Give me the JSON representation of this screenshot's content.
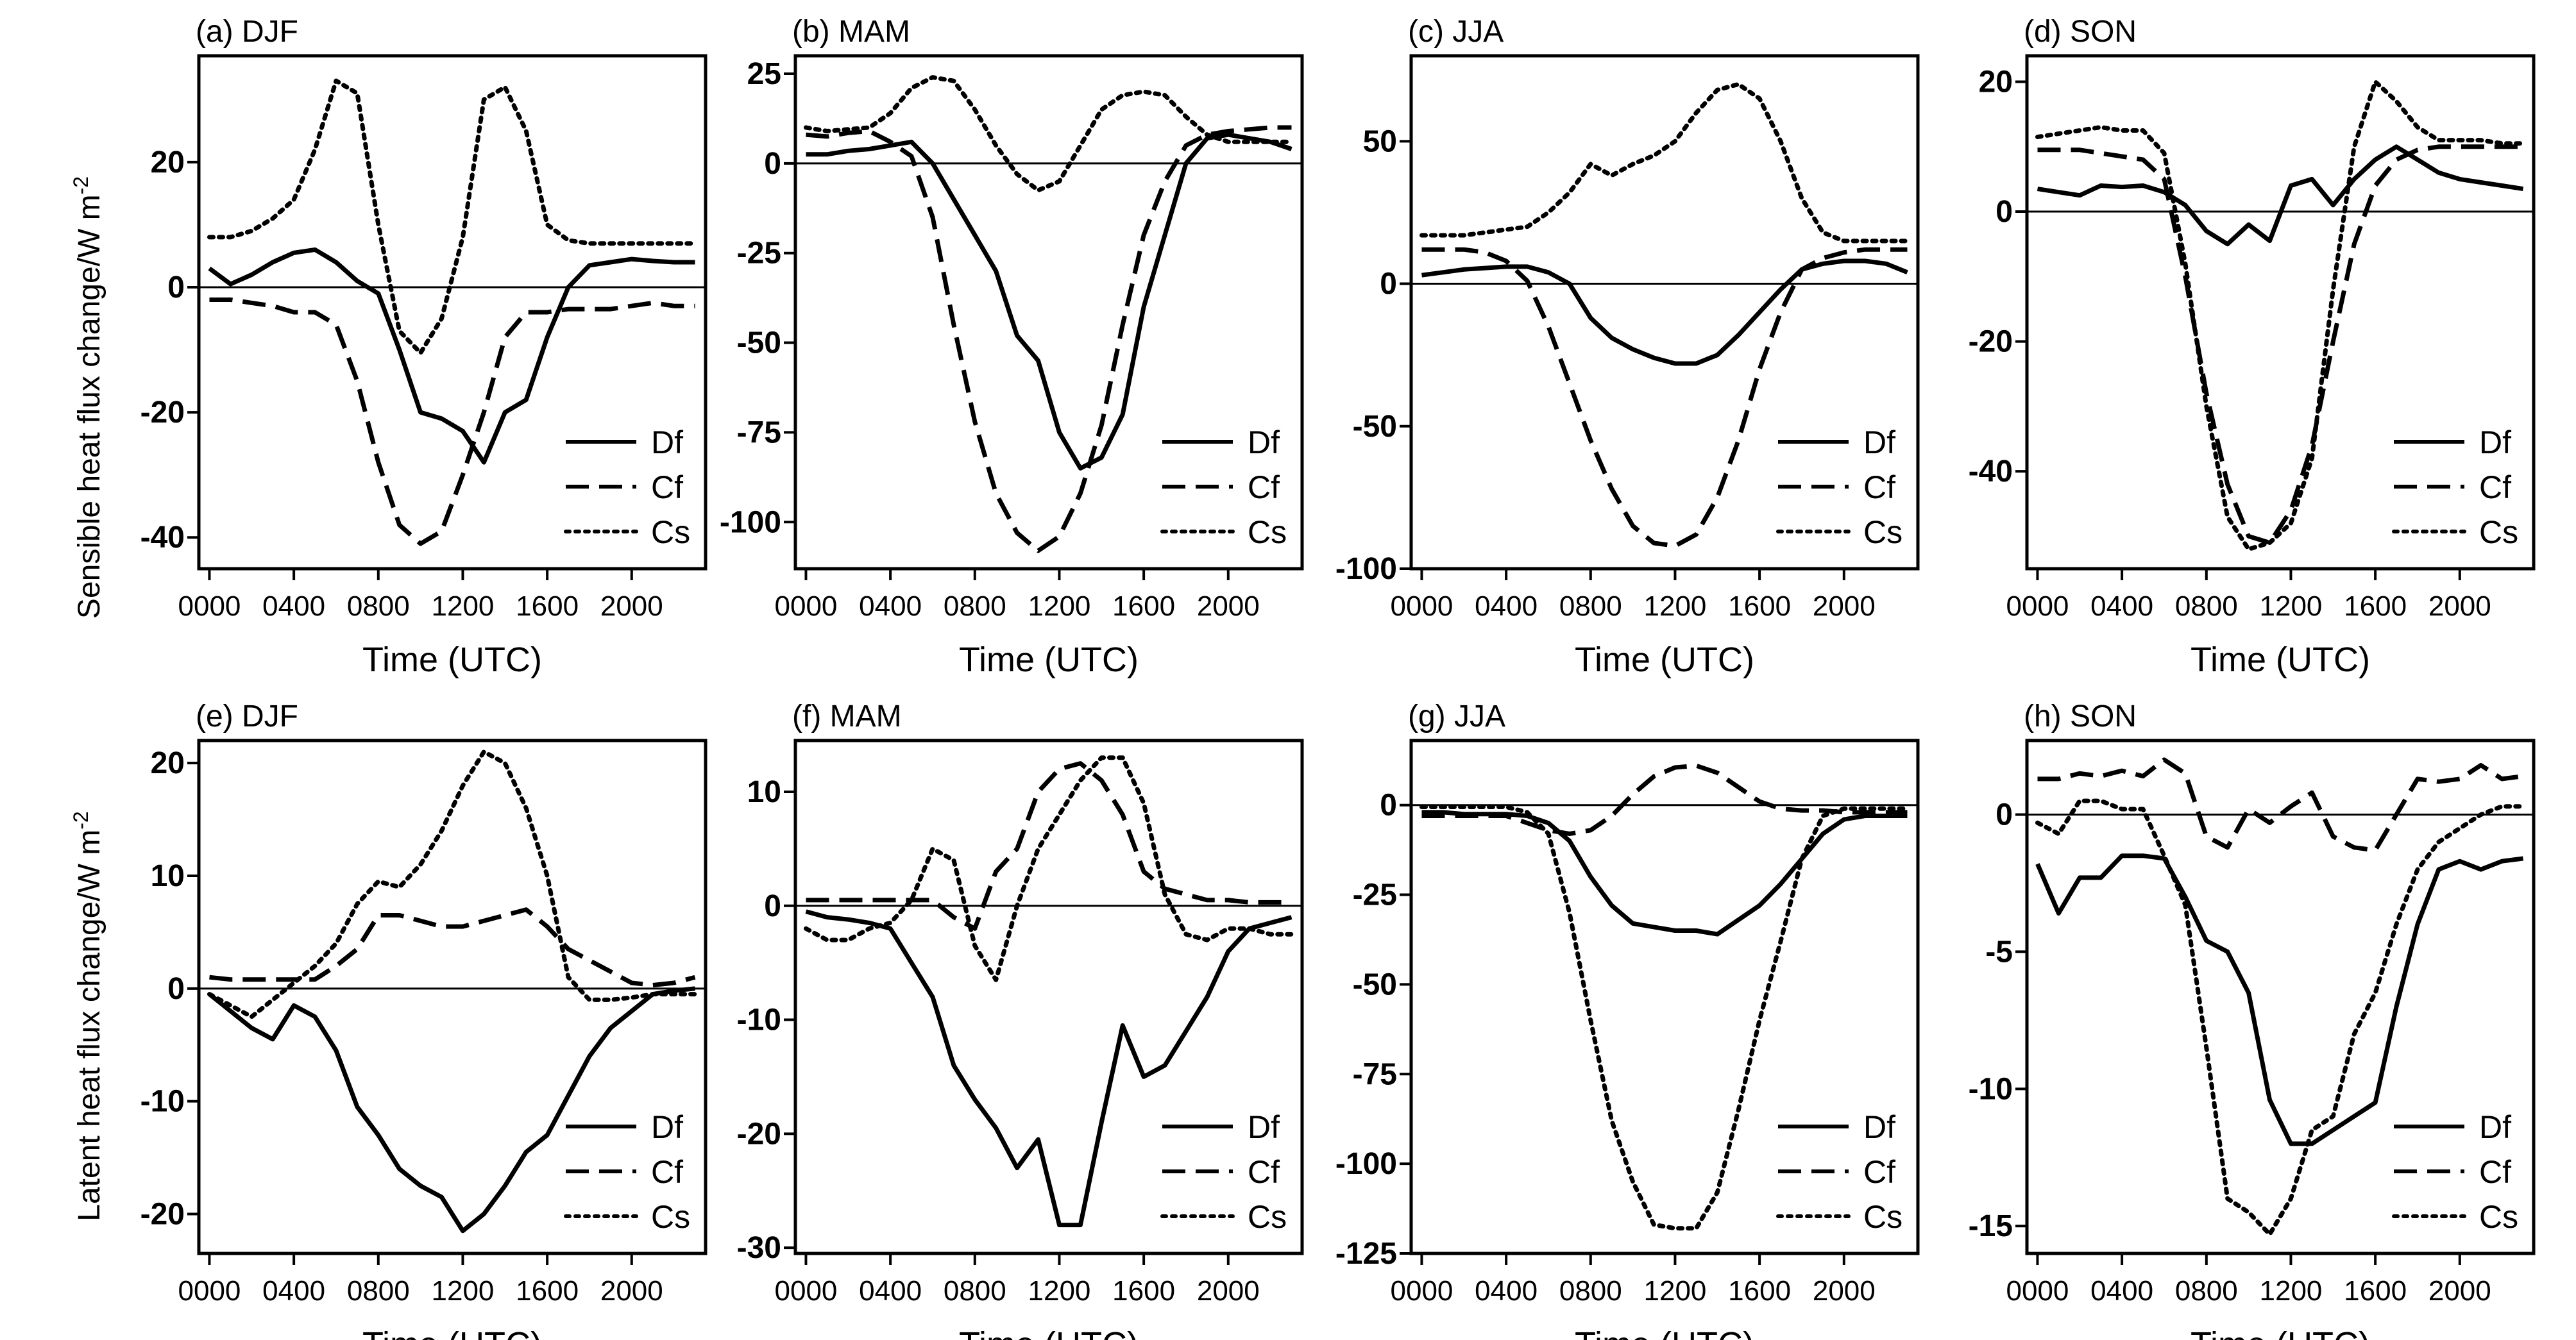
{
  "figure": {
    "x_axis_label": "Time (UTC)",
    "y_label_top_main": "Sensible heat flux change/W m",
    "y_label_top_sup": "-2",
    "y_label_bottom_main": "Latent heat flux change/W m",
    "y_label_bottom_sup": "-2",
    "legend": [
      "Df",
      "Cf",
      "Cs"
    ]
  },
  "chart_data": [
    {
      "type": "line",
      "title": "(a)  DJF",
      "xlabel": "Time (UTC)",
      "ylabel": "Sensible heat flux change/W m-2",
      "x_ticks": [
        "0000",
        "0400",
        "0800",
        "1200",
        "1600",
        "2000"
      ],
      "xlim": [
        -0.5,
        23.5
      ],
      "ylim": [
        -45,
        37
      ],
      "y_ticks": [
        20,
        0,
        -20,
        -40
      ],
      "x": [
        0,
        1,
        2,
        3,
        4,
        5,
        6,
        7,
        8,
        9,
        10,
        11,
        12,
        13,
        14,
        15,
        16,
        17,
        18,
        19,
        20,
        21,
        22,
        23
      ],
      "series": [
        {
          "name": "Df",
          "style": "solid",
          "values": [
            3,
            0.5,
            2,
            4,
            5.5,
            6,
            4,
            1,
            -1,
            -10,
            -20,
            -21,
            -23,
            -28,
            -20,
            -18,
            -8,
            0,
            3.5,
            4,
            4.5,
            4.2,
            4,
            4
          ]
        },
        {
          "name": "Cf",
          "style": "dashed",
          "values": [
            -2,
            -2,
            -2.5,
            -3,
            -4,
            -4,
            -6,
            -15,
            -28,
            -38,
            -41,
            -39,
            -30,
            -20,
            -8,
            -4,
            -4,
            -3.5,
            -3.5,
            -3.5,
            -3,
            -2.5,
            -3,
            -3
          ]
        },
        {
          "name": "Cs",
          "style": "dotted",
          "values": [
            8,
            8,
            9,
            11,
            14,
            22,
            33,
            31,
            10,
            -7,
            -10.5,
            -5,
            8,
            30,
            32,
            25,
            10,
            7.5,
            7,
            7,
            7,
            7,
            7,
            7
          ]
        }
      ]
    },
    {
      "type": "line",
      "title": "(b)  MAM",
      "xlabel": "Time (UTC)",
      "ylabel": "",
      "x_ticks": [
        "0000",
        "0400",
        "0800",
        "1200",
        "1600",
        "2000"
      ],
      "xlim": [
        -0.5,
        23.5
      ],
      "ylim": [
        -113,
        30
      ],
      "y_ticks": [
        25,
        0,
        -25,
        -50,
        -75,
        -100
      ],
      "x": [
        0,
        1,
        2,
        3,
        4,
        5,
        6,
        7,
        8,
        9,
        10,
        11,
        12,
        13,
        14,
        15,
        16,
        17,
        18,
        19,
        20,
        21,
        22,
        23
      ],
      "series": [
        {
          "name": "Df",
          "style": "solid",
          "values": [
            2.5,
            2.5,
            3.5,
            4,
            5,
            6,
            0,
            -10,
            -20,
            -30,
            -48,
            -55,
            -75,
            -85,
            -82,
            -70,
            -40,
            -20,
            0,
            7,
            8,
            7,
            6,
            4
          ]
        },
        {
          "name": "Cf",
          "style": "dashed",
          "values": [
            8,
            7.5,
            8.5,
            9,
            6,
            2,
            -15,
            -45,
            -72,
            -92,
            -103,
            -108,
            -104,
            -92,
            -73,
            -45,
            -20,
            -5,
            5,
            8,
            9,
            9.5,
            10,
            10
          ]
        },
        {
          "name": "Cs",
          "style": "dotted",
          "values": [
            10,
            9,
            9.5,
            10,
            14,
            21,
            24,
            23,
            15,
            5,
            -3,
            -7.5,
            -5,
            5,
            15,
            19,
            20,
            19,
            13,
            8,
            6,
            6,
            6,
            6
          ]
        }
      ]
    },
    {
      "type": "line",
      "title": "(c)  JJA",
      "xlabel": "Time (UTC)",
      "ylabel": "",
      "x_ticks": [
        "0000",
        "0400",
        "0800",
        "1200",
        "1600",
        "2000"
      ],
      "xlim": [
        -0.5,
        23.5
      ],
      "ylim": [
        -100,
        80
      ],
      "y_ticks": [
        50,
        0,
        -50,
        -100
      ],
      "x": [
        0,
        1,
        2,
        3,
        4,
        5,
        6,
        7,
        8,
        9,
        10,
        11,
        12,
        13,
        14,
        15,
        16,
        17,
        18,
        19,
        20,
        21,
        22,
        23
      ],
      "series": [
        {
          "name": "Df",
          "style": "solid",
          "values": [
            3,
            4,
            5,
            5.5,
            6,
            6,
            4,
            0,
            -12,
            -19,
            -23,
            -26,
            -28,
            -28,
            -25,
            -18,
            -10,
            -2,
            5,
            7,
            8,
            8,
            7,
            4
          ]
        },
        {
          "name": "Cf",
          "style": "dashed",
          "values": [
            12,
            12,
            12,
            11,
            8,
            1,
            -15,
            -35,
            -55,
            -72,
            -85,
            -91,
            -92,
            -88,
            -75,
            -55,
            -30,
            -10,
            5,
            9,
            11,
            12,
            12,
            12
          ]
        },
        {
          "name": "Cs",
          "style": "dotted",
          "values": [
            17,
            17,
            17,
            18,
            19,
            20,
            25,
            32,
            42,
            38,
            42,
            45,
            50,
            60,
            68,
            70,
            65,
            50,
            30,
            18,
            15,
            15,
            15,
            15
          ]
        }
      ]
    },
    {
      "type": "line",
      "title": "(d)  SON",
      "xlabel": "Time (UTC)",
      "ylabel": "",
      "x_ticks": [
        "0000",
        "0400",
        "0800",
        "1200",
        "1600",
        "2000"
      ],
      "xlim": [
        -0.5,
        23.5
      ],
      "ylim": [
        -55,
        24
      ],
      "y_ticks": [
        20,
        0,
        -20,
        -40
      ],
      "x": [
        0,
        1,
        2,
        3,
        4,
        5,
        6,
        7,
        8,
        9,
        10,
        11,
        12,
        13,
        14,
        15,
        16,
        17,
        18,
        19,
        20,
        21,
        22,
        23
      ],
      "series": [
        {
          "name": "Df",
          "style": "solid",
          "values": [
            3.5,
            3,
            2.5,
            4,
            3.8,
            4,
            3,
            1,
            -3,
            -5,
            -2,
            -4.5,
            4,
            5,
            1,
            5,
            8,
            10,
            8,
            6,
            5,
            4.5,
            4,
            3.5
          ]
        },
        {
          "name": "Cf",
          "style": "dashed",
          "values": [
            9.5,
            9.5,
            9.5,
            9,
            8.5,
            8,
            5,
            -10,
            -28,
            -42,
            -50,
            -51,
            -46,
            -36,
            -20,
            -5,
            4,
            8,
            9.5,
            10,
            10,
            10,
            10,
            10
          ]
        },
        {
          "name": "Cs",
          "style": "dotted",
          "values": [
            11.5,
            12,
            12.5,
            13,
            12.5,
            12.5,
            9,
            -8,
            -30,
            -47,
            -52,
            -51,
            -48,
            -38,
            -12,
            10,
            20,
            17,
            13,
            11,
            11,
            11,
            10.5,
            10.5
          ]
        }
      ]
    },
    {
      "type": "line",
      "title": "(e)  DJF",
      "xlabel": "Time (UTC)",
      "ylabel": "Latent heat flux change/W m-2",
      "x_ticks": [
        "0000",
        "0400",
        "0800",
        "1200",
        "1600",
        "2000"
      ],
      "xlim": [
        -0.5,
        23.5
      ],
      "ylim": [
        -23.5,
        22
      ],
      "y_ticks": [
        20,
        10,
        0,
        -10,
        -20
      ],
      "x": [
        0,
        1,
        2,
        3,
        4,
        5,
        6,
        7,
        8,
        9,
        10,
        11,
        12,
        13,
        14,
        15,
        16,
        17,
        18,
        19,
        20,
        21,
        22,
        23
      ],
      "series": [
        {
          "name": "Df",
          "style": "solid",
          "values": [
            -0.5,
            -2,
            -3.5,
            -4.5,
            -1.5,
            -2.5,
            -5.5,
            -10.5,
            -13,
            -16,
            -17.5,
            -18.5,
            -21.5,
            -20,
            -17.5,
            -14.5,
            -13,
            -9.5,
            -6,
            -3.5,
            -2,
            -0.5,
            -0.2,
            0
          ]
        },
        {
          "name": "Cf",
          "style": "dashed",
          "values": [
            1,
            0.8,
            0.8,
            0.8,
            0.8,
            0.8,
            2,
            3.5,
            6.5,
            6.5,
            6,
            5.5,
            5.5,
            6,
            6.5,
            7,
            5.5,
            3.5,
            2.5,
            1.5,
            0.5,
            0.3,
            0.5,
            1
          ]
        },
        {
          "name": "Cs",
          "style": "dotted",
          "values": [
            -0.5,
            -1.5,
            -2.5,
            -1,
            0.5,
            2,
            4,
            7.5,
            9.5,
            9,
            11,
            14,
            18,
            21,
            20,
            16,
            10,
            1,
            -1,
            -1,
            -0.8,
            -0.5,
            -0.5,
            -0.5
          ]
        }
      ]
    },
    {
      "type": "line",
      "title": "(f)   MAM",
      "xlabel": "Time (UTC)",
      "ylabel": "",
      "x_ticks": [
        "0000",
        "0400",
        "0800",
        "1200",
        "1600",
        "2000"
      ],
      "xlim": [
        -0.5,
        23.5
      ],
      "ylim": [
        -30.5,
        14.5
      ],
      "y_ticks": [
        10,
        0,
        -10,
        -20,
        -30
      ],
      "x": [
        0,
        1,
        2,
        3,
        4,
        5,
        6,
        7,
        8,
        9,
        10,
        11,
        12,
        13,
        14,
        15,
        16,
        17,
        18,
        19,
        20,
        21,
        22,
        23
      ],
      "series": [
        {
          "name": "Df",
          "style": "solid",
          "values": [
            -0.5,
            -1,
            -1.2,
            -1.5,
            -2,
            -5,
            -8,
            -14,
            -17,
            -19.5,
            -23,
            -20.5,
            -28,
            -28,
            -19,
            -10.5,
            -15,
            -14,
            -11,
            -8,
            -4,
            -2,
            -1.5,
            -1
          ]
        },
        {
          "name": "Cf",
          "style": "dashed",
          "values": [
            0.5,
            0.5,
            0.5,
            0.5,
            0.5,
            0.5,
            0.5,
            -1,
            -2,
            3,
            5,
            10,
            12,
            12.5,
            11,
            8,
            3,
            1.5,
            1,
            0.5,
            0.5,
            0.3,
            0.3,
            0.3
          ]
        },
        {
          "name": "Cs",
          "style": "dotted",
          "values": [
            -2,
            -3,
            -3,
            -2,
            -1.5,
            0.5,
            5,
            4,
            -3.5,
            -6.5,
            0,
            5,
            8,
            11,
            13,
            13,
            9,
            1,
            -2.5,
            -3,
            -2,
            -2,
            -2.5,
            -2.5
          ]
        }
      ]
    },
    {
      "type": "line",
      "title": "(g)  JJA",
      "xlabel": "Time (UTC)",
      "ylabel": "",
      "x_ticks": [
        "0000",
        "0400",
        "0800",
        "1200",
        "1600",
        "2000"
      ],
      "xlim": [
        -0.5,
        23.5
      ],
      "ylim": [
        -125,
        18
      ],
      "y_ticks": [
        0,
        -25,
        -50,
        -75,
        -100,
        -125
      ],
      "x": [
        0,
        1,
        2,
        3,
        4,
        5,
        6,
        7,
        8,
        9,
        10,
        11,
        12,
        13,
        14,
        15,
        16,
        17,
        18,
        19,
        20,
        21,
        22,
        23
      ],
      "series": [
        {
          "name": "Df",
          "style": "solid",
          "values": [
            -2,
            -2,
            -2.5,
            -2.5,
            -2.5,
            -3,
            -5,
            -10,
            -20,
            -28,
            -33,
            -34,
            -35,
            -35,
            -36,
            -32,
            -28,
            -22,
            -15,
            -8,
            -4,
            -3,
            -3,
            -3
          ]
        },
        {
          "name": "Cf",
          "style": "dashed",
          "values": [
            -3,
            -3,
            -3,
            -3,
            -3,
            -5,
            -7,
            -8,
            -7,
            -3,
            3,
            8,
            10.5,
            11,
            9,
            5,
            1,
            -1,
            -1.5,
            -1.5,
            -2,
            -2,
            -2,
            -2
          ]
        },
        {
          "name": "Cs",
          "style": "dotted",
          "values": [
            -0.5,
            -0.5,
            -0.5,
            -0.5,
            -0.5,
            -2,
            -8,
            -30,
            -60,
            -88,
            -105,
            -117,
            -118,
            -118,
            -108,
            -85,
            -60,
            -38,
            -15,
            -3,
            -1,
            -1,
            -1,
            -1
          ]
        }
      ]
    },
    {
      "type": "line",
      "title": "(h)  SON",
      "xlabel": "Time (UTC)",
      "ylabel": "",
      "x_ticks": [
        "0000",
        "0400",
        "0800",
        "1200",
        "1600",
        "2000"
      ],
      "xlim": [
        -0.5,
        23.5
      ],
      "ylim": [
        -16,
        2.7
      ],
      "y_ticks": [
        0,
        -5,
        -10,
        -15
      ],
      "x": [
        0,
        1,
        2,
        3,
        4,
        5,
        6,
        7,
        8,
        9,
        10,
        11,
        12,
        13,
        14,
        15,
        16,
        17,
        18,
        19,
        20,
        21,
        22,
        23
      ],
      "series": [
        {
          "name": "Df",
          "style": "solid",
          "values": [
            -1.8,
            -3.6,
            -2.3,
            -2.3,
            -1.5,
            -1.5,
            -1.6,
            -3,
            -4.6,
            -5,
            -6.5,
            -10.4,
            -12,
            -12,
            -11.5,
            -11,
            -10.5,
            -7,
            -4,
            -2,
            -1.7,
            -2,
            -1.7,
            -1.6
          ]
        },
        {
          "name": "Cf",
          "style": "dashed",
          "values": [
            1.3,
            1.3,
            1.5,
            1.4,
            1.6,
            1.4,
            2,
            1.5,
            -0.8,
            -1.2,
            0.2,
            -0.3,
            0.3,
            0.8,
            -0.8,
            -1.2,
            -1.3,
            0,
            1.3,
            1.2,
            1.3,
            1.8,
            1.3,
            1.4
          ]
        },
        {
          "name": "Cs",
          "style": "dotted",
          "values": [
            -0.3,
            -0.7,
            0.5,
            0.5,
            0.2,
            0.2,
            -1.5,
            -3.3,
            -8.5,
            -14,
            -14.5,
            -15.3,
            -14,
            -11.5,
            -11,
            -8,
            -6.5,
            -4,
            -2,
            -1,
            -0.5,
            0,
            0.3,
            0.3
          ]
        }
      ]
    }
  ]
}
